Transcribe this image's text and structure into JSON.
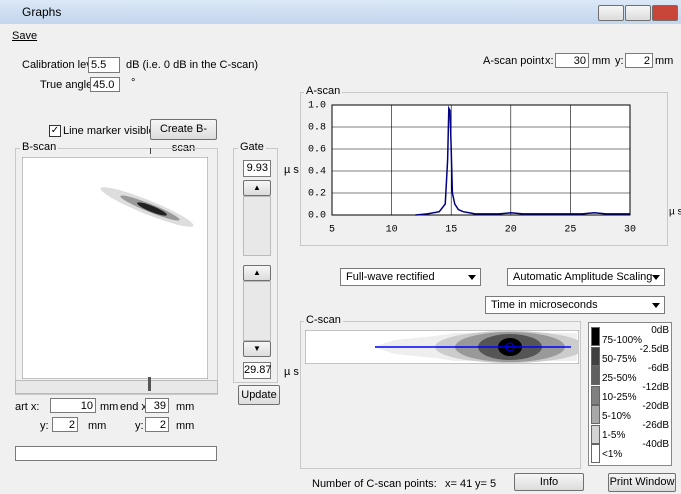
{
  "window": {
    "title": "Graphs"
  },
  "menu": {
    "save": "Save"
  },
  "calibration": {
    "label": "Calibration level",
    "value": "5.5",
    "note": "dB (i.e. 0 dB in the C-scan)"
  },
  "true_angle": {
    "label": "True angle",
    "value": "45.0",
    "unit": "°"
  },
  "ascan_point": {
    "label": "A-scan point",
    "x_label": "x:",
    "x": "30",
    "x_unit": "mm",
    "y_label": "y:",
    "y": "2",
    "y_unit": "mm"
  },
  "line_marker": "Line marker visible",
  "create_bscan": "Create B-scan",
  "bscan": {
    "title": "B-scan"
  },
  "gate": {
    "title": "Gate",
    "start": "9.93",
    "end": "29.87",
    "unit_top": "µ s",
    "unit_bottom": "µ s",
    "update": "Update"
  },
  "range": {
    "start_x_label": "art x:",
    "start_x": "10",
    "start_x_unit": "mm",
    "end_x_label": "end x:",
    "end_x": "39",
    "end_x_unit": "mm",
    "start_y_label": "y:",
    "start_y": "2",
    "start_y_unit": "mm",
    "end_y_label": "y:",
    "end_y": "2",
    "end_y_unit": "mm"
  },
  "chart_data": {
    "type": "line",
    "title": "A-scan",
    "x_label": "µ s",
    "x": [
      12,
      13,
      14,
      14.5,
      14.7,
      14.8,
      14.9,
      15,
      15.1,
      15.3,
      15.6,
      16,
      16.5,
      17,
      18,
      19,
      20,
      21,
      22,
      23,
      24,
      25,
      26,
      27,
      28,
      29,
      30
    ],
    "values": [
      0,
      0.01,
      0.03,
      0.1,
      0.5,
      0.97,
      0.95,
      0.6,
      0.2,
      0.1,
      0.05,
      0.03,
      0.02,
      0.01,
      0.01,
      0.01,
      0.02,
      0.01,
      0.01,
      0.01,
      0.01,
      0.01,
      0.01,
      0.02,
      0.01,
      0.01,
      0.01
    ],
    "color": "#000080",
    "xlim": [
      5,
      30
    ],
    "ylim": [
      0,
      1
    ],
    "xticks": [
      5,
      10,
      15,
      20,
      25,
      30
    ],
    "yticks": [
      {
        "value": 0,
        "label": "0.0"
      },
      {
        "value": 0.2,
        "label": "0.2"
      },
      {
        "value": 0.4,
        "label": "0.4"
      },
      {
        "value": 0.6,
        "label": "0.6"
      },
      {
        "value": 0.8,
        "label": "0.8"
      },
      {
        "value": 1,
        "label": "1.0"
      }
    ],
    "grid": true
  },
  "controls": {
    "rectification": "Full-wave rectified",
    "scaling": "Automatic Amplitude Scaling",
    "time_axis": "Time in microseconds"
  },
  "cscan": {
    "title": "C-scan"
  },
  "legend": {
    "db": [
      "0dB",
      "-2.5dB",
      "-6dB",
      "-12dB",
      "-20dB",
      "-26dB",
      "-40dB"
    ],
    "percent": [
      "75-100%",
      "50-75%",
      "25-50%",
      "10-25%",
      "5-10%",
      "1-5%",
      "<1%"
    ]
  },
  "footer": {
    "points_label": "Number of C-scan points:",
    "x": "x= 41",
    "y": "y= 5"
  },
  "buttons": {
    "info": "Info",
    "print": "Print Window"
  }
}
